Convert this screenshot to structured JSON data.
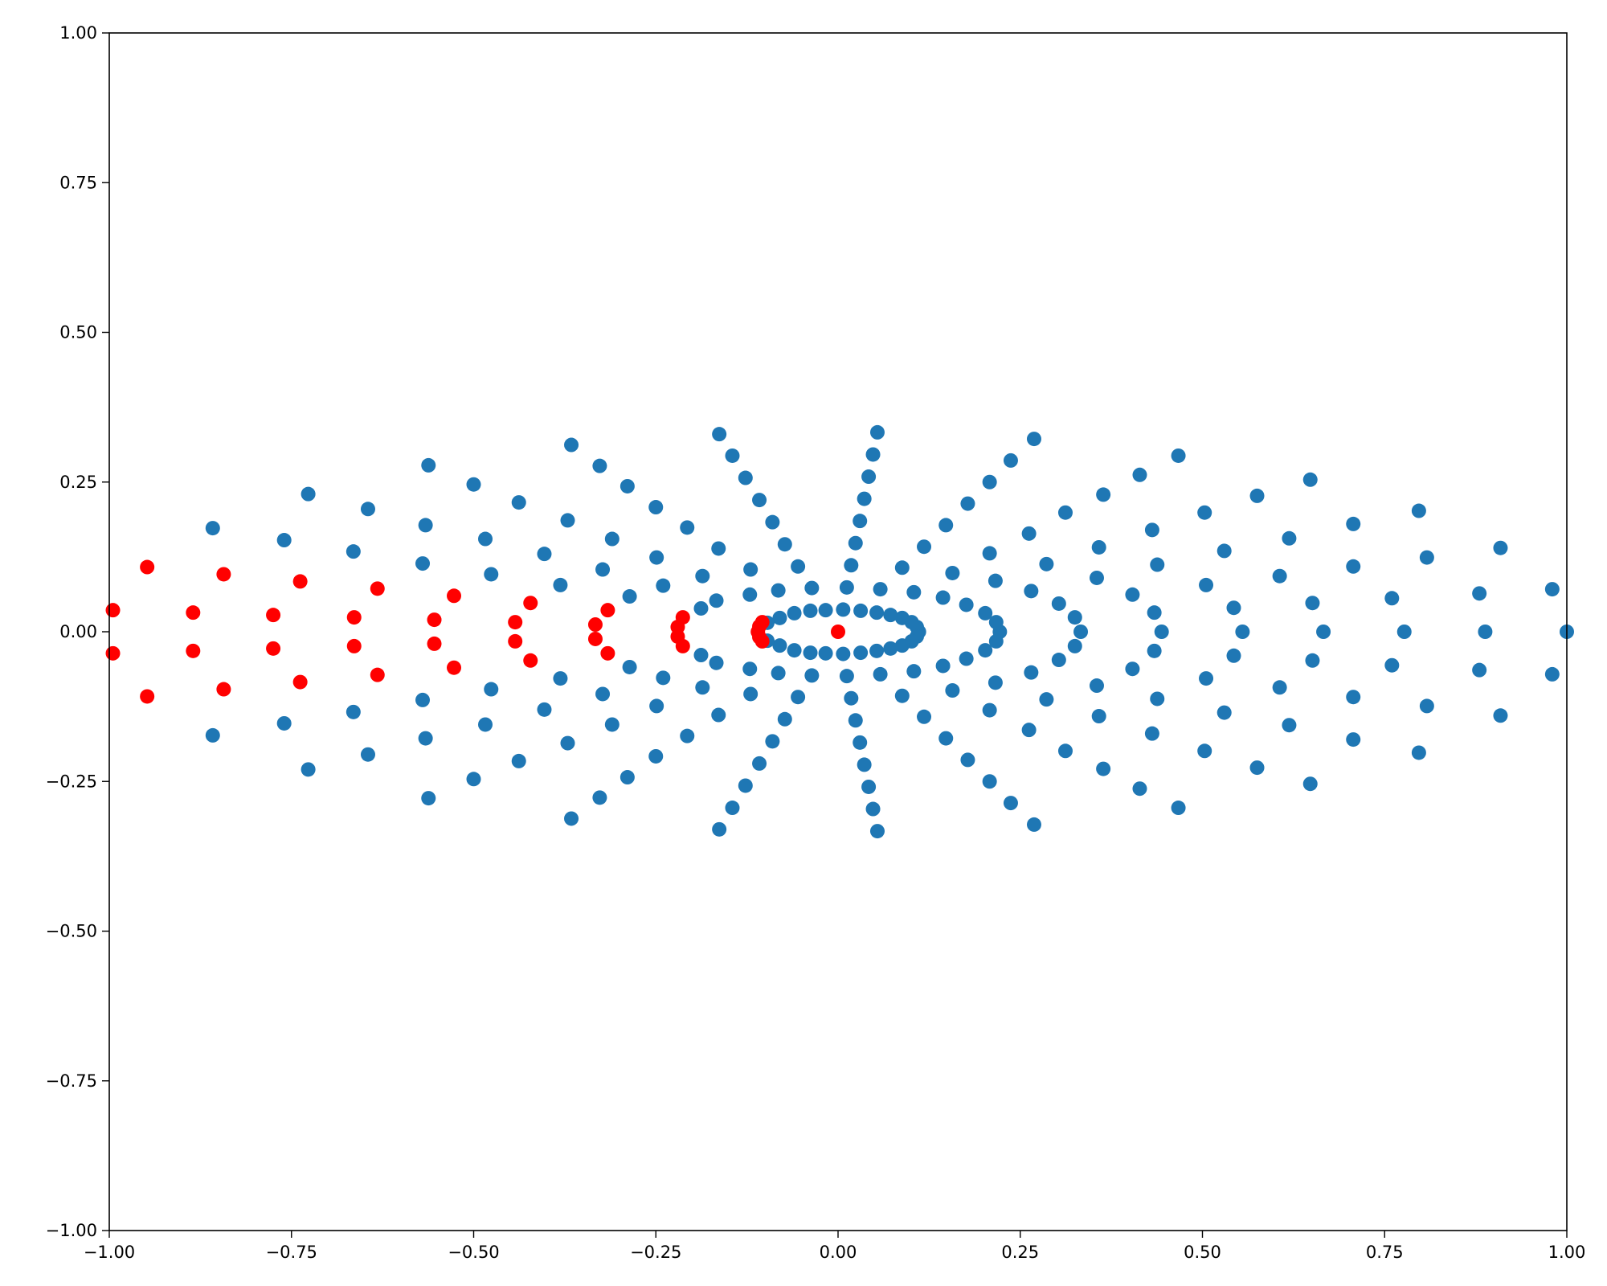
{
  "chart_data": {
    "type": "scatter",
    "title": "",
    "xlabel": "",
    "ylabel": "",
    "xlim": [
      -1.0,
      1.0
    ],
    "ylim": [
      -1.0,
      1.0
    ],
    "grid": false,
    "legend": "none",
    "x_ticks": [
      "−1.00",
      "−0.75",
      "−0.50",
      "−0.25",
      "0.00",
      "0.25",
      "0.50",
      "0.75",
      "1.00"
    ],
    "y_ticks": [
      "−1.00",
      "−0.75",
      "−0.50",
      "−0.25",
      "0.00",
      "0.25",
      "0.50",
      "0.75",
      "1.00"
    ],
    "x_tick_values": [
      -1.0,
      -0.75,
      -0.5,
      -0.25,
      0.0,
      0.25,
      0.5,
      0.75,
      1.0
    ],
    "y_tick_values": [
      -1.0,
      -0.75,
      -0.5,
      -0.25,
      0.0,
      0.25,
      0.5,
      0.75,
      1.0
    ],
    "series": [
      {
        "color": "#1f77b4",
        "points": [
          [
            1.0,
            0.0
          ],
          [
            0.98,
            0.071
          ],
          [
            0.98,
            -0.071
          ],
          [
            0.909,
            0.14
          ],
          [
            0.909,
            -0.14
          ],
          [
            0.808,
            0.124
          ],
          [
            0.808,
            -0.124
          ],
          [
            0.797,
            0.202
          ],
          [
            0.797,
            -0.202
          ],
          [
            0.777,
            0.0
          ],
          [
            0.88,
            0.064
          ],
          [
            0.88,
            -0.064
          ],
          [
            0.888,
            0.0
          ],
          [
            0.76,
            0.056
          ],
          [
            0.76,
            -0.056
          ],
          [
            0.707,
            0.18
          ],
          [
            0.707,
            -0.18
          ],
          [
            0.707,
            0.109
          ],
          [
            0.707,
            -0.109
          ],
          [
            0.666,
            0.0
          ],
          [
            0.651,
            0.048
          ],
          [
            0.651,
            -0.048
          ],
          [
            0.648,
            0.254
          ],
          [
            0.648,
            -0.254
          ],
          [
            0.619,
            0.156
          ],
          [
            0.619,
            -0.156
          ],
          [
            0.606,
            0.093
          ],
          [
            0.606,
            -0.093
          ],
          [
            0.575,
            0.227
          ],
          [
            0.575,
            -0.227
          ],
          [
            0.555,
            0.0
          ],
          [
            0.543,
            0.04
          ],
          [
            0.543,
            -0.04
          ],
          [
            0.53,
            0.135
          ],
          [
            0.53,
            -0.135
          ],
          [
            0.505,
            0.078
          ],
          [
            0.505,
            -0.078
          ],
          [
            0.503,
            0.199
          ],
          [
            0.503,
            -0.199
          ],
          [
            0.467,
            0.294
          ],
          [
            0.467,
            -0.294
          ],
          [
            0.444,
            0.0
          ],
          [
            0.438,
            0.112
          ],
          [
            0.438,
            -0.112
          ],
          [
            0.434,
            0.032
          ],
          [
            0.434,
            -0.032
          ],
          [
            0.431,
            0.17
          ],
          [
            0.431,
            -0.17
          ],
          [
            0.414,
            0.262
          ],
          [
            0.414,
            -0.262
          ],
          [
            0.404,
            0.062
          ],
          [
            0.404,
            -0.062
          ],
          [
            0.364,
            0.229
          ],
          [
            0.364,
            -0.229
          ],
          [
            0.358,
            0.141
          ],
          [
            0.358,
            -0.141
          ],
          [
            0.355,
            0.09
          ],
          [
            0.355,
            -0.09
          ],
          [
            0.333,
            0.0
          ],
          [
            0.325,
            0.024
          ],
          [
            0.325,
            -0.024
          ],
          [
            0.312,
            0.199
          ],
          [
            0.312,
            -0.199
          ],
          [
            0.303,
            0.047
          ],
          [
            0.303,
            -0.047
          ],
          [
            0.286,
            0.113
          ],
          [
            0.286,
            -0.113
          ],
          [
            0.269,
            0.322
          ],
          [
            0.269,
            -0.322
          ],
          [
            0.265,
            0.068
          ],
          [
            0.265,
            -0.068
          ],
          [
            0.262,
            0.164
          ],
          [
            0.262,
            -0.164
          ],
          [
            0.237,
            0.286
          ],
          [
            0.237,
            -0.286
          ],
          [
            0.222,
            0.0
          ],
          [
            0.217,
            0.016
          ],
          [
            0.217,
            -0.016
          ],
          [
            0.216,
            0.085
          ],
          [
            0.216,
            -0.085
          ],
          [
            0.208,
            0.131
          ],
          [
            0.208,
            -0.131
          ],
          [
            0.208,
            0.25
          ],
          [
            0.208,
            -0.25
          ],
          [
            0.202,
            0.031
          ],
          [
            0.202,
            -0.031
          ],
          [
            0.178,
            0.214
          ],
          [
            0.178,
            -0.214
          ],
          [
            0.176,
            0.045
          ],
          [
            0.176,
            -0.045
          ],
          [
            0.157,
            0.098
          ],
          [
            0.157,
            -0.098
          ],
          [
            0.148,
            0.178
          ],
          [
            0.148,
            -0.178
          ],
          [
            0.144,
            0.057
          ],
          [
            0.144,
            -0.057
          ],
          [
            0.118,
            0.142
          ],
          [
            0.118,
            -0.142
          ],
          [
            0.111,
            0.0
          ],
          [
            0.108,
            0.008
          ],
          [
            0.108,
            -0.008
          ],
          [
            0.104,
            0.066
          ],
          [
            0.104,
            -0.066
          ],
          [
            0.101,
            0.016
          ],
          [
            0.101,
            -0.016
          ],
          [
            0.088,
            0.023
          ],
          [
            0.088,
            -0.023
          ],
          [
            0.088,
            0.107
          ],
          [
            0.088,
            -0.107
          ],
          [
            0.072,
            0.028
          ],
          [
            0.072,
            -0.028
          ],
          [
            0.058,
            0.071
          ],
          [
            0.058,
            -0.071
          ],
          [
            0.054,
            0.333
          ],
          [
            0.054,
            -0.333
          ],
          [
            0.053,
            0.032
          ],
          [
            0.053,
            -0.032
          ],
          [
            0.048,
            0.296
          ],
          [
            0.048,
            -0.296
          ],
          [
            0.042,
            0.259
          ],
          [
            0.042,
            -0.259
          ],
          [
            0.036,
            0.222
          ],
          [
            0.036,
            -0.222
          ],
          [
            0.031,
            0.035
          ],
          [
            0.031,
            -0.035
          ],
          [
            0.03,
            0.185
          ],
          [
            0.03,
            -0.185
          ],
          [
            0.024,
            0.148
          ],
          [
            0.024,
            -0.148
          ],
          [
            0.018,
            0.111
          ],
          [
            0.018,
            -0.111
          ],
          [
            0.012,
            0.074
          ],
          [
            0.012,
            -0.074
          ],
          [
            0.007,
            0.037
          ],
          [
            0.007,
            -0.037
          ],
          [
            -0.017,
            0.036
          ],
          [
            -0.017,
            -0.036
          ],
          [
            -0.036,
            0.073
          ],
          [
            -0.036,
            -0.073
          ],
          [
            -0.038,
            0.035
          ],
          [
            -0.038,
            -0.035
          ],
          [
            -0.055,
            0.109
          ],
          [
            -0.055,
            -0.109
          ],
          [
            -0.06,
            0.031
          ],
          [
            -0.06,
            -0.031
          ],
          [
            -0.073,
            0.146
          ],
          [
            -0.073,
            -0.146
          ],
          [
            -0.08,
            0.023
          ],
          [
            -0.08,
            -0.023
          ],
          [
            -0.082,
            0.069
          ],
          [
            -0.082,
            -0.069
          ],
          [
            -0.09,
            0.183
          ],
          [
            -0.09,
            -0.183
          ],
          [
            -0.097,
            0.015
          ],
          [
            -0.097,
            -0.015
          ],
          [
            -0.108,
            0.22
          ],
          [
            -0.108,
            -0.22
          ],
          [
            -0.12,
            0.104
          ],
          [
            -0.12,
            -0.104
          ],
          [
            -0.121,
            0.062
          ],
          [
            -0.121,
            -0.062
          ],
          [
            -0.127,
            0.257
          ],
          [
            -0.127,
            -0.257
          ],
          [
            -0.145,
            0.294
          ],
          [
            -0.145,
            -0.294
          ],
          [
            -0.163,
            0.33
          ],
          [
            -0.163,
            -0.33
          ],
          [
            -0.164,
            0.139
          ],
          [
            -0.164,
            -0.139
          ],
          [
            -0.167,
            0.052
          ],
          [
            -0.167,
            -0.052
          ],
          [
            -0.186,
            0.093
          ],
          [
            -0.186,
            -0.093
          ],
          [
            -0.188,
            0.039
          ],
          [
            -0.188,
            -0.039
          ],
          [
            -0.207,
            0.174
          ],
          [
            -0.207,
            -0.174
          ],
          [
            -0.24,
            0.077
          ],
          [
            -0.24,
            -0.077
          ],
          [
            -0.249,
            0.124
          ],
          [
            -0.249,
            -0.124
          ],
          [
            -0.25,
            0.208
          ],
          [
            -0.25,
            -0.208
          ],
          [
            -0.286,
            0.059
          ],
          [
            -0.286,
            -0.059
          ],
          [
            -0.289,
            0.243
          ],
          [
            -0.289,
            -0.243
          ],
          [
            -0.31,
            0.155
          ],
          [
            -0.31,
            -0.155
          ],
          [
            -0.323,
            0.104
          ],
          [
            -0.323,
            -0.104
          ],
          [
            -0.327,
            0.277
          ],
          [
            -0.327,
            -0.277
          ],
          [
            -0.371,
            0.186
          ],
          [
            -0.371,
            -0.186
          ],
          [
            -0.366,
            0.312
          ],
          [
            -0.366,
            -0.312
          ],
          [
            -0.381,
            0.078
          ],
          [
            -0.381,
            -0.078
          ],
          [
            -0.403,
            0.13
          ],
          [
            -0.403,
            -0.13
          ],
          [
            -0.438,
            0.216
          ],
          [
            -0.438,
            -0.216
          ],
          [
            -0.484,
            0.155
          ],
          [
            -0.484,
            -0.155
          ],
          [
            -0.5,
            0.246
          ],
          [
            -0.5,
            -0.246
          ],
          [
            -0.476,
            0.096
          ],
          [
            -0.476,
            -0.096
          ],
          [
            -0.566,
            0.178
          ],
          [
            -0.566,
            -0.178
          ],
          [
            -0.562,
            0.278
          ],
          [
            -0.562,
            -0.278
          ],
          [
            -0.57,
            0.114
          ],
          [
            -0.57,
            -0.114
          ],
          [
            -0.645,
            0.205
          ],
          [
            -0.645,
            -0.205
          ],
          [
            -0.665,
            0.134
          ],
          [
            -0.665,
            -0.134
          ],
          [
            -0.727,
            0.23
          ],
          [
            -0.727,
            -0.23
          ],
          [
            -0.76,
            0.153
          ],
          [
            -0.76,
            -0.153
          ],
          [
            -0.858,
            0.173
          ],
          [
            -0.858,
            -0.173
          ]
        ]
      },
      {
        "color": "#ff0000",
        "points": [
          [
            0.0,
            0.0
          ],
          [
            -0.11,
            0.0
          ],
          [
            -0.108,
            0.009
          ],
          [
            -0.108,
            -0.009
          ],
          [
            -0.104,
            0.016
          ],
          [
            -0.104,
            -0.016
          ],
          [
            -0.22,
            0.008
          ],
          [
            -0.22,
            -0.008
          ],
          [
            -0.213,
            0.024
          ],
          [
            -0.213,
            -0.024
          ],
          [
            -0.333,
            0.012
          ],
          [
            -0.333,
            -0.012
          ],
          [
            -0.316,
            0.036
          ],
          [
            -0.316,
            -0.036
          ],
          [
            -0.443,
            0.016
          ],
          [
            -0.443,
            -0.016
          ],
          [
            -0.422,
            0.048
          ],
          [
            -0.422,
            -0.048
          ],
          [
            -0.554,
            0.02
          ],
          [
            -0.554,
            -0.02
          ],
          [
            -0.527,
            0.06
          ],
          [
            -0.527,
            -0.06
          ],
          [
            -0.664,
            0.024
          ],
          [
            -0.664,
            -0.024
          ],
          [
            -0.632,
            0.072
          ],
          [
            -0.632,
            -0.072
          ],
          [
            -0.775,
            0.028
          ],
          [
            -0.775,
            -0.028
          ],
          [
            -0.738,
            0.084
          ],
          [
            -0.738,
            -0.084
          ],
          [
            -0.885,
            0.032
          ],
          [
            -0.885,
            -0.032
          ],
          [
            -0.843,
            0.096
          ],
          [
            -0.843,
            -0.096
          ],
          [
            -0.995,
            0.036
          ],
          [
            -0.995,
            -0.036
          ],
          [
            -0.948,
            0.108
          ],
          [
            -0.948,
            -0.108
          ]
        ]
      }
    ]
  }
}
